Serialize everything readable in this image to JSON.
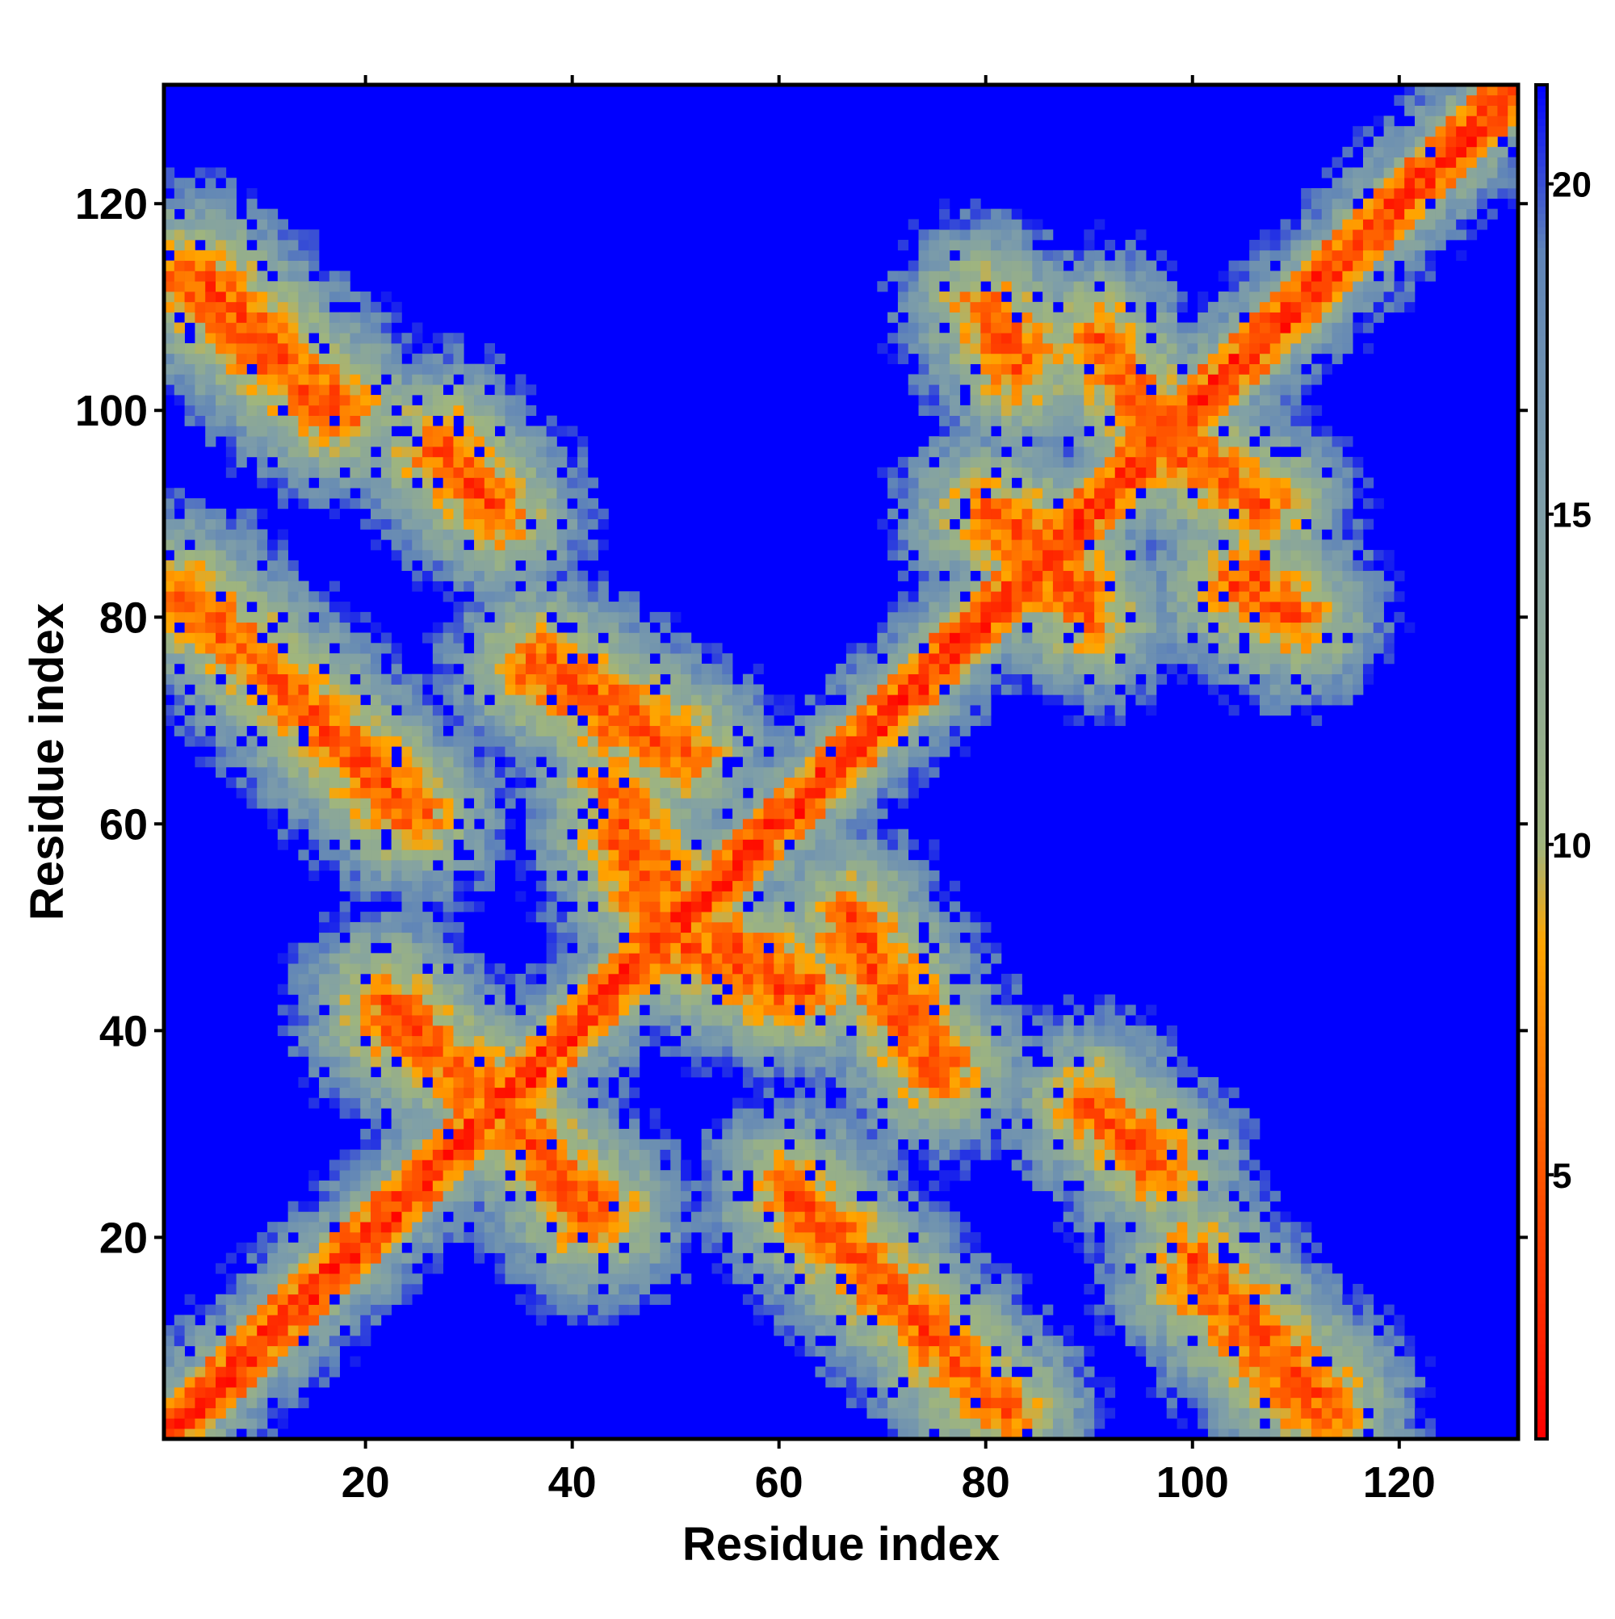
{
  "chart_data": {
    "type": "heatmap",
    "title": "",
    "xlabel": "Residue index",
    "ylabel": "Residue index",
    "n_residues": 131,
    "xlim": [
      1,
      131
    ],
    "ylim": [
      1,
      131
    ],
    "xticks": [
      20,
      40,
      60,
      80,
      100,
      120
    ],
    "yticks": [
      20,
      40,
      60,
      80,
      100,
      120
    ],
    "colorbar": {
      "ticks": [
        5,
        10,
        15,
        20
      ],
      "range": [
        1,
        21.5
      ],
      "colors": [
        {
          "stop": 1,
          "color": "#ff0000"
        },
        {
          "stop": 5,
          "color": "#ff5500"
        },
        {
          "stop": 8.5,
          "color": "#ffa500"
        },
        {
          "stop": 10,
          "color": "#9fb57e"
        },
        {
          "stop": 15,
          "color": "#7f9fa8"
        },
        {
          "stop": 19,
          "color": "#5f84b8"
        },
        {
          "stop": 21.5,
          "color": "#0000ff"
        }
      ]
    },
    "background_color": "#0000ff",
    "cutoff": 21,
    "contact_bands": [
      {
        "name": "anti-parallel",
        "start": [
          2,
          113
        ],
        "end": [
          16,
          100
        ]
      },
      {
        "name": "anti-parallel",
        "start": [
          3,
          82
        ],
        "end": [
          24,
          61
        ]
      },
      {
        "name": "anti-parallel",
        "start": [
          27,
          97
        ],
        "end": [
          33,
          90
        ]
      },
      {
        "name": "anti-parallel",
        "start": [
          37,
          76
        ],
        "end": [
          51,
          67
        ]
      },
      {
        "name": "anti-parallel",
        "start": [
          44,
          63
        ],
        "end": [
          49,
          54
        ]
      },
      {
        "name": "anti-parallel",
        "start": [
          22,
          41
        ],
        "end": [
          31,
          35
        ]
      },
      {
        "name": "anti-parallel",
        "start": [
          34,
          31
        ],
        "end": [
          43,
          22
        ]
      },
      {
        "name": "anti-parallel",
        "start": [
          51,
          48
        ],
        "end": [
          60,
          44
        ]
      },
      {
        "name": "anti-parallel",
        "start": [
          67,
          49
        ],
        "end": [
          75,
          36
        ]
      },
      {
        "name": "anti-parallel",
        "start": [
          61,
          25
        ],
        "end": [
          82,
          3
        ]
      },
      {
        "name": "anti-parallel",
        "start": [
          90,
          33
        ],
        "end": [
          96,
          27
        ]
      },
      {
        "name": "anti-parallel",
        "start": [
          100,
          18
        ],
        "end": [
          113,
          4
        ]
      },
      {
        "name": "anti-parallel",
        "start": [
          91,
          106
        ],
        "end": [
          96,
          100
        ]
      },
      {
        "name": "anti-parallel",
        "start": [
          97,
          97
        ],
        "end": [
          107,
          91
        ]
      },
      {
        "name": "anti-parallel",
        "start": [
          80,
          110
        ],
        "end": [
          83,
          104
        ]
      },
      {
        "name": "anti-parallel",
        "start": [
          83,
          89
        ],
        "end": [
          90,
          80
        ]
      },
      {
        "name": "anti-parallel",
        "start": [
          106,
          84
        ],
        "end": [
          108,
          81
        ]
      }
    ]
  }
}
